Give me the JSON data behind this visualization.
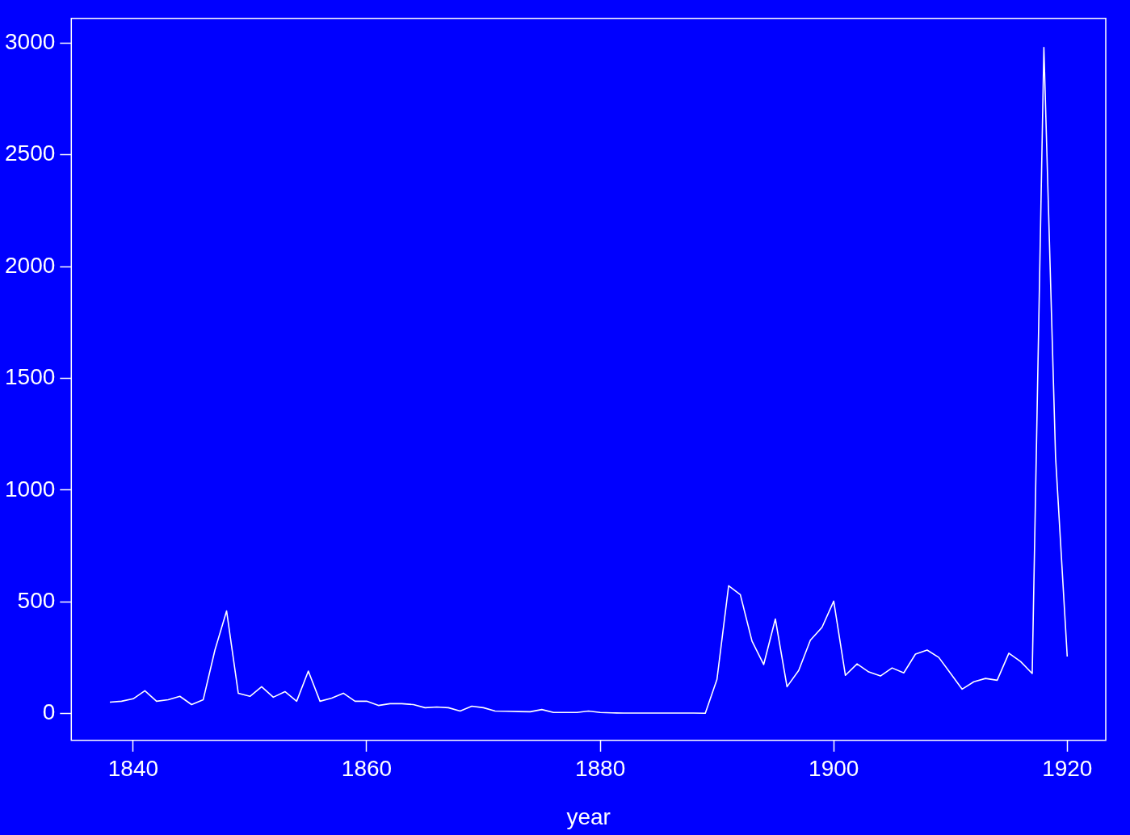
{
  "chart_data": {
    "type": "line",
    "xlabel": "year",
    "x": [
      1838,
      1839,
      1840,
      1841,
      1842,
      1843,
      1844,
      1845,
      1846,
      1847,
      1848,
      1849,
      1850,
      1851,
      1852,
      1853,
      1854,
      1855,
      1856,
      1857,
      1858,
      1859,
      1860,
      1861,
      1862,
      1863,
      1864,
      1865,
      1866,
      1867,
      1868,
      1869,
      1870,
      1871,
      1872,
      1873,
      1874,
      1875,
      1876,
      1877,
      1878,
      1879,
      1880,
      1881,
      1882,
      1883,
      1884,
      1885,
      1886,
      1887,
      1888,
      1889,
      1890,
      1891,
      1892,
      1893,
      1894,
      1895,
      1896,
      1897,
      1898,
      1899,
      1900,
      1901,
      1902,
      1903,
      1904,
      1905,
      1906,
      1907,
      1908,
      1909,
      1910,
      1911,
      1912,
      1913,
      1914,
      1915,
      1916,
      1917,
      1918,
      1919,
      1920
    ],
    "values": [
      51,
      55,
      66,
      102,
      55,
      62,
      77,
      40,
      62,
      284,
      459,
      91,
      77,
      120,
      73,
      98,
      55,
      190,
      55,
      69,
      91,
      55,
      55,
      36,
      44,
      44,
      40,
      26,
      29,
      26,
      11,
      33,
      26,
      11,
      10,
      9,
      8,
      18,
      5,
      5,
      5,
      11,
      5,
      3,
      2,
      2,
      2,
      2,
      2,
      2,
      2,
      1,
      153,
      572,
      532,
      324,
      219,
      423,
      120,
      193,
      328,
      386,
      503,
      171,
      222,
      186,
      168,
      204,
      182,
      266,
      284,
      251,
      180,
      109,
      142,
      157,
      149,
      270,
      233,
      179,
      2980,
      1148,
      255
    ],
    "color": "#ffffff",
    "xlim": [
      1834.7,
      1923.3
    ],
    "ylim": [
      -120,
      3110
    ],
    "xticks": [
      1840,
      1860,
      1880,
      1900,
      1920
    ],
    "yticks": [
      0,
      500,
      1000,
      1500,
      2000,
      2500,
      3000
    ]
  }
}
